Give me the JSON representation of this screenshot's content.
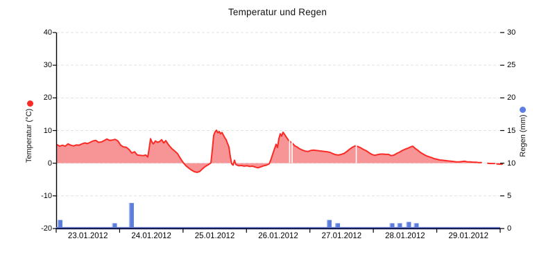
{
  "title": "Temperatur und Regen",
  "left_axis": {
    "title": "Temperatur (°C)",
    "min": -20,
    "max": 40,
    "tick_values": [
      40,
      30,
      20,
      10,
      0,
      -10,
      -20
    ],
    "tick_labels": [
      "40",
      "30",
      "20",
      "10",
      "0",
      "-10",
      "-20"
    ],
    "legend_dot_color": "#fa2a25"
  },
  "right_axis": {
    "title": "Regen (mm)",
    "min": 0,
    "max": 30,
    "tick_values": [
      30,
      25,
      20,
      15,
      10,
      5,
      0
    ],
    "tick_labels": [
      "30",
      "25",
      "20",
      "15",
      "10",
      "5",
      "0"
    ],
    "legend_dot_color": "#5b7ee0"
  },
  "x_axis": {
    "labels": [
      "23.01.2012",
      "24.01.2012",
      "25.01.2012",
      "26.01.2012",
      "27.01.2012",
      "28.01.2012",
      "29.01.2012"
    ],
    "day_span": 7
  },
  "colors": {
    "temp_line": "#fa2a25",
    "temp_fill": "#f69496",
    "rain_bar": "#5b7edd",
    "rain_bar_highlight": "#aab9ee",
    "gridline": "#e1e1e1",
    "axis_black": "#000000",
    "bottom_axis_navy": "#181d4f",
    "bottom_axis_blue": "#6b83d6"
  },
  "chart_data": {
    "type": "combo-area-line-and-bar",
    "title": "Temperatur und Regen",
    "x_unit": "days since 23.01.2012 00:00",
    "gridline_values_left_axis": [
      40,
      30,
      20,
      10,
      0,
      -10
    ],
    "temperature": {
      "name": "Temperatur",
      "unit": "°C",
      "axis": "left",
      "baseline": 0,
      "segments": [
        {
          "points": [
            [
              0.011,
              5.7
            ],
            [
              0.055,
              5.2
            ],
            [
              0.098,
              5.5
            ],
            [
              0.142,
              5.2
            ],
            [
              0.186,
              5.9
            ],
            [
              0.23,
              5.5
            ],
            [
              0.273,
              5.3
            ],
            [
              0.317,
              5.6
            ],
            [
              0.361,
              5.5
            ],
            [
              0.405,
              5.9
            ],
            [
              0.448,
              6.2
            ],
            [
              0.492,
              6.0
            ],
            [
              0.536,
              6.4
            ],
            [
              0.58,
              6.8
            ],
            [
              0.623,
              7.0
            ],
            [
              0.667,
              6.4
            ],
            [
              0.711,
              6.5
            ],
            [
              0.755,
              6.9
            ],
            [
              0.798,
              7.4
            ],
            [
              0.842,
              7.0
            ],
            [
              0.886,
              7.1
            ],
            [
              0.93,
              7.3
            ],
            [
              0.973,
              6.8
            ],
            [
              1.017,
              5.5
            ],
            [
              1.061,
              5.0
            ],
            [
              1.105,
              4.9
            ],
            [
              1.148,
              4.2
            ],
            [
              1.192,
              3.1
            ],
            [
              1.236,
              3.5
            ],
            [
              1.28,
              2.5
            ],
            [
              1.323,
              2.4
            ],
            [
              1.367,
              2.3
            ],
            [
              1.411,
              2.5
            ],
            [
              1.444,
              1.9
            ],
            [
              1.466,
              4.5
            ],
            [
              1.488,
              7.5
            ],
            [
              1.509,
              6.5
            ],
            [
              1.531,
              5.9
            ],
            [
              1.564,
              6.8
            ],
            [
              1.597,
              6.4
            ],
            [
              1.63,
              6.6
            ],
            [
              1.663,
              7.2
            ],
            [
              1.695,
              6.2
            ],
            [
              1.728,
              6.9
            ],
            [
              1.761,
              5.9
            ],
            [
              1.794,
              5.1
            ],
            [
              1.827,
              4.4
            ],
            [
              1.87,
              3.7
            ],
            [
              1.914,
              2.9
            ],
            [
              1.958,
              1.5
            ],
            [
              2.002,
              0.2
            ],
            [
              2.045,
              -0.8
            ],
            [
              2.089,
              -1.5
            ],
            [
              2.133,
              -2.1
            ],
            [
              2.177,
              -2.6
            ],
            [
              2.22,
              -2.8
            ],
            [
              2.264,
              -2.5
            ],
            [
              2.308,
              -1.7
            ],
            [
              2.352,
              -1.0
            ],
            [
              2.395,
              -0.5
            ],
            [
              2.439,
              0.1
            ],
            [
              2.461,
              4.0
            ],
            [
              2.483,
              8.5
            ],
            [
              2.505,
              9.6
            ],
            [
              2.527,
              10.1
            ],
            [
              2.548,
              9.3
            ],
            [
              2.57,
              9.7
            ],
            [
              2.592,
              9.0
            ],
            [
              2.614,
              9.4
            ],
            [
              2.636,
              8.6
            ],
            [
              2.658,
              7.8
            ],
            [
              2.68,
              7.2
            ],
            [
              2.702,
              6.0
            ],
            [
              2.723,
              5.0
            ],
            [
              2.745,
              2.0
            ],
            [
              2.767,
              -0.2
            ],
            [
              2.789,
              -0.6
            ],
            [
              2.811,
              0.9
            ],
            [
              2.833,
              -0.4
            ],
            [
              2.877,
              -0.8
            ],
            [
              2.92,
              -0.7
            ],
            [
              2.964,
              -0.9
            ],
            [
              3.008,
              -0.8
            ],
            [
              3.052,
              -1.0
            ],
            [
              3.095,
              -0.9
            ],
            [
              3.139,
              -1.2
            ],
            [
              3.183,
              -1.4
            ],
            [
              3.227,
              -1.1
            ],
            [
              3.27,
              -0.8
            ],
            [
              3.314,
              -0.6
            ],
            [
              3.358,
              -0.2
            ],
            [
              3.38,
              0.8
            ],
            [
              3.402,
              2.1
            ],
            [
              3.424,
              3.4
            ],
            [
              3.445,
              4.6
            ],
            [
              3.467,
              5.8
            ],
            [
              3.489,
              4.8
            ],
            [
              3.511,
              7.5
            ],
            [
              3.533,
              9.0
            ],
            [
              3.555,
              8.3
            ],
            [
              3.577,
              9.5
            ],
            [
              3.598,
              8.9
            ],
            [
              3.62,
              8.2
            ],
            [
              3.642,
              7.6
            ],
            [
              3.664,
              7.0
            ],
            [
              3.697,
              6.5
            ],
            [
              3.73,
              6.0
            ],
            [
              3.763,
              5.3
            ],
            [
              3.795,
              5.0
            ],
            [
              3.839,
              4.4
            ],
            [
              3.883,
              4.0
            ],
            [
              3.927,
              3.7
            ],
            [
              3.97,
              3.6
            ],
            [
              4.014,
              3.9
            ],
            [
              4.058,
              4.0
            ],
            [
              4.102,
              3.9
            ],
            [
              4.145,
              3.8
            ],
            [
              4.189,
              3.7
            ],
            [
              4.233,
              3.6
            ],
            [
              4.277,
              3.5
            ],
            [
              4.32,
              3.3
            ],
            [
              4.364,
              2.9
            ],
            [
              4.408,
              2.6
            ],
            [
              4.452,
              2.5
            ],
            [
              4.495,
              2.7
            ],
            [
              4.539,
              3.0
            ],
            [
              4.583,
              3.6
            ],
            [
              4.627,
              4.3
            ],
            [
              4.67,
              4.9
            ],
            [
              4.714,
              5.3
            ],
            [
              4.758,
              5.1
            ],
            [
              4.802,
              4.7
            ],
            [
              4.845,
              4.2
            ],
            [
              4.889,
              3.8
            ],
            [
              4.933,
              3.2
            ],
            [
              4.977,
              2.7
            ],
            [
              5.02,
              2.4
            ],
            [
              5.064,
              2.6
            ],
            [
              5.108,
              2.8
            ],
            [
              5.152,
              2.8
            ],
            [
              5.195,
              2.7
            ],
            [
              5.239,
              2.7
            ],
            [
              5.283,
              2.3
            ],
            [
              5.327,
              2.5
            ],
            [
              5.37,
              3.0
            ],
            [
              5.414,
              3.4
            ],
            [
              5.458,
              3.9
            ],
            [
              5.502,
              4.3
            ],
            [
              5.545,
              4.6
            ],
            [
              5.589,
              5.0
            ],
            [
              5.622,
              5.2
            ],
            [
              5.655,
              4.6
            ],
            [
              5.698,
              4.0
            ],
            [
              5.742,
              3.3
            ],
            [
              5.786,
              2.8
            ],
            [
              5.83,
              2.3
            ],
            [
              5.873,
              2.0
            ],
            [
              5.917,
              1.7
            ],
            [
              5.961,
              1.4
            ],
            [
              6.005,
              1.2
            ],
            [
              6.048,
              1.0
            ],
            [
              6.092,
              0.9
            ],
            [
              6.136,
              0.8
            ],
            [
              6.18,
              0.7
            ],
            [
              6.223,
              0.6
            ],
            [
              6.267,
              0.5
            ],
            [
              6.311,
              0.4
            ],
            [
              6.355,
              0.4
            ],
            [
              6.398,
              0.5
            ],
            [
              6.442,
              0.6
            ],
            [
              6.486,
              0.4
            ],
            [
              6.53,
              0.4
            ],
            [
              6.573,
              0.3
            ],
            [
              6.617,
              0.3
            ],
            [
              6.661,
              0.2
            ],
            [
              6.705,
              0.2
            ]
          ]
        },
        {
          "points": [
            [
              6.803,
              0.0
            ],
            [
              6.836,
              -0.1
            ],
            [
              6.88,
              -0.1
            ],
            [
              6.913,
              -0.1
            ]
          ]
        },
        {
          "points": [
            [
              6.945,
              -0.2
            ],
            [
              6.989,
              -0.3
            ],
            [
              7.033,
              -0.3
            ]
          ]
        }
      ],
      "missing_data_gap_lines": [
        {
          "day": 3.68,
          "top_temp": 7.0
        },
        {
          "day": 3.719,
          "top_temp": 6.2
        },
        {
          "day": 4.731,
          "top_temp": 5.3
        }
      ]
    },
    "rain": {
      "name": "Regen",
      "unit": "mm",
      "axis": "right",
      "bars": [
        [
          0.06,
          1.2
        ],
        [
          0.919,
          0.7
        ],
        [
          1.186,
          3.8
        ],
        [
          4.304,
          1.2
        ],
        [
          4.436,
          0.7
        ],
        [
          5.294,
          0.7
        ],
        [
          5.414,
          0.7
        ],
        [
          5.556,
          0.9
        ],
        [
          5.677,
          0.7
        ]
      ]
    }
  }
}
